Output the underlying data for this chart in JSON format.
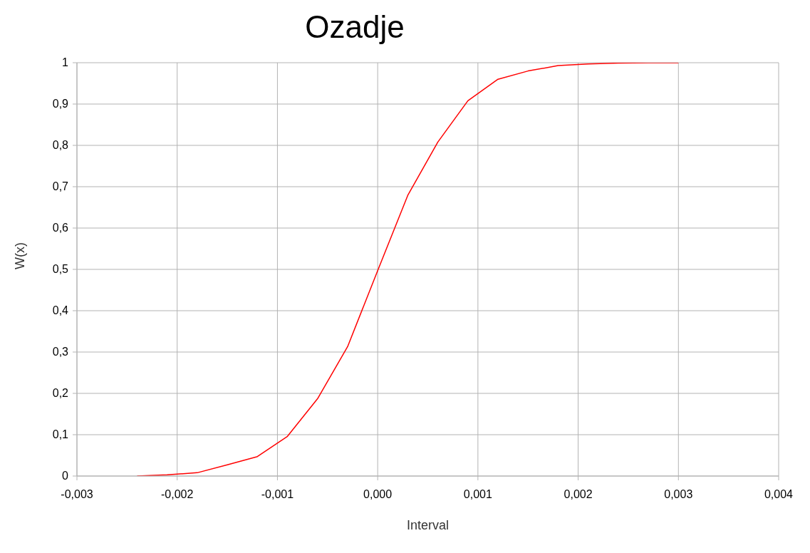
{
  "chart_data": {
    "type": "line",
    "title": "Ozadje",
    "xlabel": "Interval",
    "ylabel": "W(x)",
    "x": [
      -0.0024,
      -0.0021,
      -0.0018,
      -0.0015,
      -0.0012,
      -0.0009,
      -0.0006,
      -0.0003,
      0,
      0.0003,
      0.0006,
      0.0009,
      0.0012,
      0.0015,
      0.0018,
      0.0021,
      0.0024,
      0.0027,
      0.003
    ],
    "series": [
      {
        "color": "#ff0000",
        "values": [
          0,
          0.003,
          0.008,
          0.027,
          0.047,
          0.096,
          0.187,
          0.313,
          0.497,
          0.679,
          0.808,
          0.908,
          0.96,
          0.98,
          0.993,
          0.997,
          0.999,
          1,
          1
        ]
      }
    ],
    "xlim": [
      -0.003,
      0.004
    ],
    "xticks": [
      {
        "value": -0.003,
        "label": "-0,003"
      },
      {
        "value": -0.002,
        "label": "-0,002"
      },
      {
        "value": -0.001,
        "label": "-0,001"
      },
      {
        "value": 0,
        "label": "0,000"
      },
      {
        "value": 0.001,
        "label": "0,001"
      },
      {
        "value": 0.002,
        "label": "0,002"
      },
      {
        "value": 0.003,
        "label": "0,003"
      },
      {
        "value": 0.004,
        "label": "0,004"
      }
    ],
    "ylim": [
      0,
      1
    ],
    "yticks": [
      0,
      {
        "value": 0.1,
        "label": "0,1"
      },
      {
        "value": 0.2,
        "label": "0,2"
      },
      {
        "value": 0.3,
        "label": "0,3"
      },
      {
        "value": 0.4,
        "label": "0,4"
      },
      {
        "value": 0.5,
        "label": "0,5"
      },
      {
        "value": 0.6,
        "label": "0,6"
      },
      {
        "value": 0.7,
        "label": "0,7"
      },
      {
        "value": 0.8,
        "label": "0,8"
      },
      {
        "value": 0.9,
        "label": "0,9"
      },
      1
    ],
    "grid": true,
    "marker": "none",
    "line_style": "solid",
    "legend": false
  }
}
